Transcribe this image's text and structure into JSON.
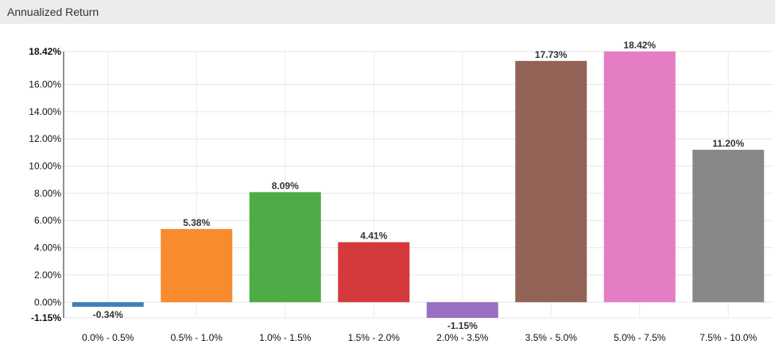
{
  "panel": {
    "title": "Annualized Return"
  },
  "chart_data": {
    "type": "bar",
    "title": "Annualized Return",
    "categories": [
      "0.0% - 0.5%",
      "0.5% - 1.0%",
      "1.0% - 1.5%",
      "1.5% - 2.0%",
      "2.0% - 3.5%",
      "3.5% - 5.0%",
      "5.0% - 7.5%",
      "7.5% - 10.0%"
    ],
    "values": [
      -0.34,
      5.38,
      8.09,
      4.41,
      -1.15,
      17.73,
      18.42,
      11.2
    ],
    "value_labels": [
      "-0.34%",
      "5.38%",
      "8.09%",
      "4.41%",
      "-1.15%",
      "17.73%",
      "18.42%",
      "11.20%"
    ],
    "colors": [
      "#3f7fb8",
      "#f98b2f",
      "#4dac45",
      "#d4393b",
      "#9a6fc2",
      "#936358",
      "#e37dc4",
      "#888888"
    ],
    "ylim": [
      -1.15,
      18.42
    ],
    "yticks": [
      {
        "value": 18.42,
        "label": "18.42%",
        "bold": true
      },
      {
        "value": 16,
        "label": "16.00%"
      },
      {
        "value": 14,
        "label": "14.00%"
      },
      {
        "value": 12,
        "label": "12.00%"
      },
      {
        "value": 10,
        "label": "10.00%"
      },
      {
        "value": 8,
        "label": "8.00%"
      },
      {
        "value": 6,
        "label": "6.00%"
      },
      {
        "value": 4,
        "label": "4.00%"
      },
      {
        "value": 2,
        "label": "2.00%"
      },
      {
        "value": 0,
        "label": "0.00%"
      },
      {
        "value": -1.15,
        "label": "-1.15%",
        "bold": true
      }
    ],
    "grid": true,
    "xlabel": "",
    "ylabel": ""
  }
}
